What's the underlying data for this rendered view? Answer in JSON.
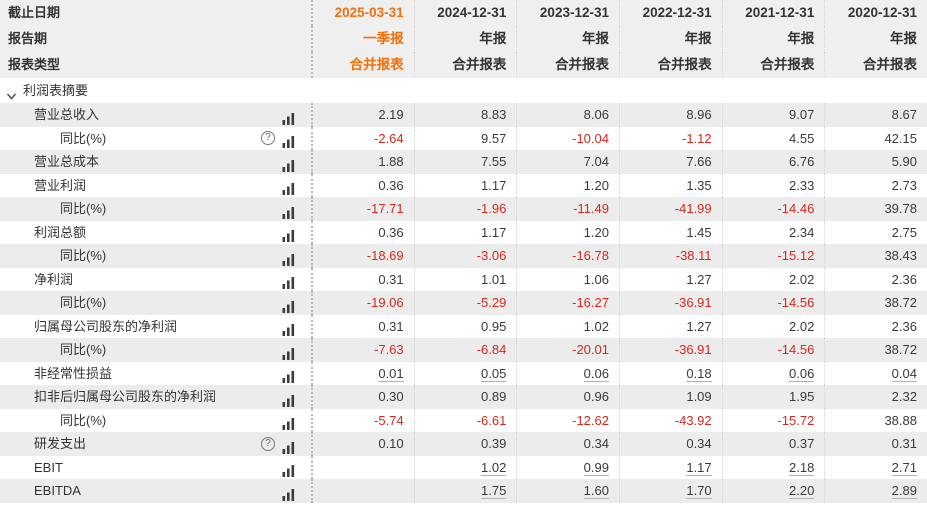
{
  "palette": {
    "accent_orange": "#f0700c",
    "negative_red": "#d5281e",
    "text_dark": "#333333",
    "header_bg": "#efefef",
    "row_gray": "#ececec"
  },
  "header": {
    "date_label": "截止日期",
    "period_label": "报告期",
    "type_label": "报表类型"
  },
  "columns": [
    {
      "date": "2025-03-31",
      "period": "一季报",
      "type": "合并报表",
      "highlighted": true
    },
    {
      "date": "2024-12-31",
      "period": "年报",
      "type": "合并报表",
      "highlighted": false
    },
    {
      "date": "2023-12-31",
      "period": "年报",
      "type": "合并报表",
      "highlighted": false
    },
    {
      "date": "2022-12-31",
      "period": "年报",
      "type": "合并报表",
      "highlighted": false
    },
    {
      "date": "2021-12-31",
      "period": "年报",
      "type": "合并报表",
      "highlighted": false
    },
    {
      "date": "2020-12-31",
      "period": "年报",
      "type": "合并报表",
      "highlighted": false
    }
  ],
  "section": {
    "title": "利润表摘要",
    "collapse_icon": "chevron-down"
  },
  "rows": [
    {
      "label": "营业总收入",
      "indent": 1,
      "help": false,
      "underline": false,
      "values": [
        "2.19",
        "8.83",
        "8.06",
        "8.96",
        "9.07",
        "8.67"
      ]
    },
    {
      "label": "同比(%)",
      "indent": 2,
      "help": true,
      "underline": false,
      "values": [
        "-2.64",
        "9.57",
        "-10.04",
        "-1.12",
        "4.55",
        "42.15"
      ]
    },
    {
      "label": "营业总成本",
      "indent": 1,
      "help": false,
      "underline": false,
      "values": [
        "1.88",
        "7.55",
        "7.04",
        "7.66",
        "6.76",
        "5.90"
      ]
    },
    {
      "label": "营业利润",
      "indent": 1,
      "help": false,
      "underline": false,
      "values": [
        "0.36",
        "1.17",
        "1.20",
        "1.35",
        "2.33",
        "2.73"
      ]
    },
    {
      "label": "同比(%)",
      "indent": 2,
      "help": false,
      "underline": false,
      "values": [
        "-17.71",
        "-1.96",
        "-11.49",
        "-41.99",
        "-14.46",
        "39.78"
      ]
    },
    {
      "label": "利润总额",
      "indent": 1,
      "help": false,
      "underline": false,
      "values": [
        "0.36",
        "1.17",
        "1.20",
        "1.45",
        "2.34",
        "2.75"
      ]
    },
    {
      "label": "同比(%)",
      "indent": 2,
      "help": false,
      "underline": false,
      "values": [
        "-18.69",
        "-3.06",
        "-16.78",
        "-38.11",
        "-15.12",
        "38.43"
      ]
    },
    {
      "label": "净利润",
      "indent": 1,
      "help": false,
      "underline": false,
      "values": [
        "0.31",
        "1.01",
        "1.06",
        "1.27",
        "2.02",
        "2.36"
      ]
    },
    {
      "label": "同比(%)",
      "indent": 2,
      "help": false,
      "underline": false,
      "values": [
        "-19.06",
        "-5.29",
        "-16.27",
        "-36.91",
        "-14.56",
        "38.72"
      ]
    },
    {
      "label": "归属母公司股东的净利润",
      "indent": 1,
      "help": false,
      "underline": false,
      "values": [
        "0.31",
        "0.95",
        "1.02",
        "1.27",
        "2.02",
        "2.36"
      ]
    },
    {
      "label": "同比(%)",
      "indent": 2,
      "help": false,
      "underline": false,
      "values": [
        "-7.63",
        "-6.84",
        "-20.01",
        "-36.91",
        "-14.56",
        "38.72"
      ]
    },
    {
      "label": "非经常性损益",
      "indent": 1,
      "help": false,
      "underline": true,
      "values": [
        "0.01",
        "0.05",
        "0.06",
        "0.18",
        "0.06",
        "0.04"
      ]
    },
    {
      "label": "扣非后归属母公司股东的净利润",
      "indent": 1,
      "help": false,
      "underline": false,
      "values": [
        "0.30",
        "0.89",
        "0.96",
        "1.09",
        "1.95",
        "2.32"
      ]
    },
    {
      "label": "同比(%)",
      "indent": 2,
      "help": false,
      "underline": false,
      "values": [
        "-5.74",
        "-6.61",
        "-12.62",
        "-43.92",
        "-15.72",
        "38.88"
      ]
    },
    {
      "label": "研发支出",
      "indent": 1,
      "help": true,
      "underline": false,
      "values": [
        "0.10",
        "0.39",
        "0.34",
        "0.34",
        "0.37",
        "0.31"
      ]
    },
    {
      "label": "EBIT",
      "indent": 1,
      "help": false,
      "underline": true,
      "values": [
        "",
        "1.02",
        "0.99",
        "1.17",
        "2.18",
        "2.71"
      ]
    },
    {
      "label": "EBITDA",
      "indent": 1,
      "help": false,
      "underline": true,
      "values": [
        "",
        "1.75",
        "1.60",
        "1.70",
        "2.20",
        "2.89"
      ]
    }
  ],
  "icons": {
    "chart": "bar-chart-icon",
    "help": "help-icon",
    "collapse": "chevron-down-icon",
    "help_glyph": "?"
  }
}
